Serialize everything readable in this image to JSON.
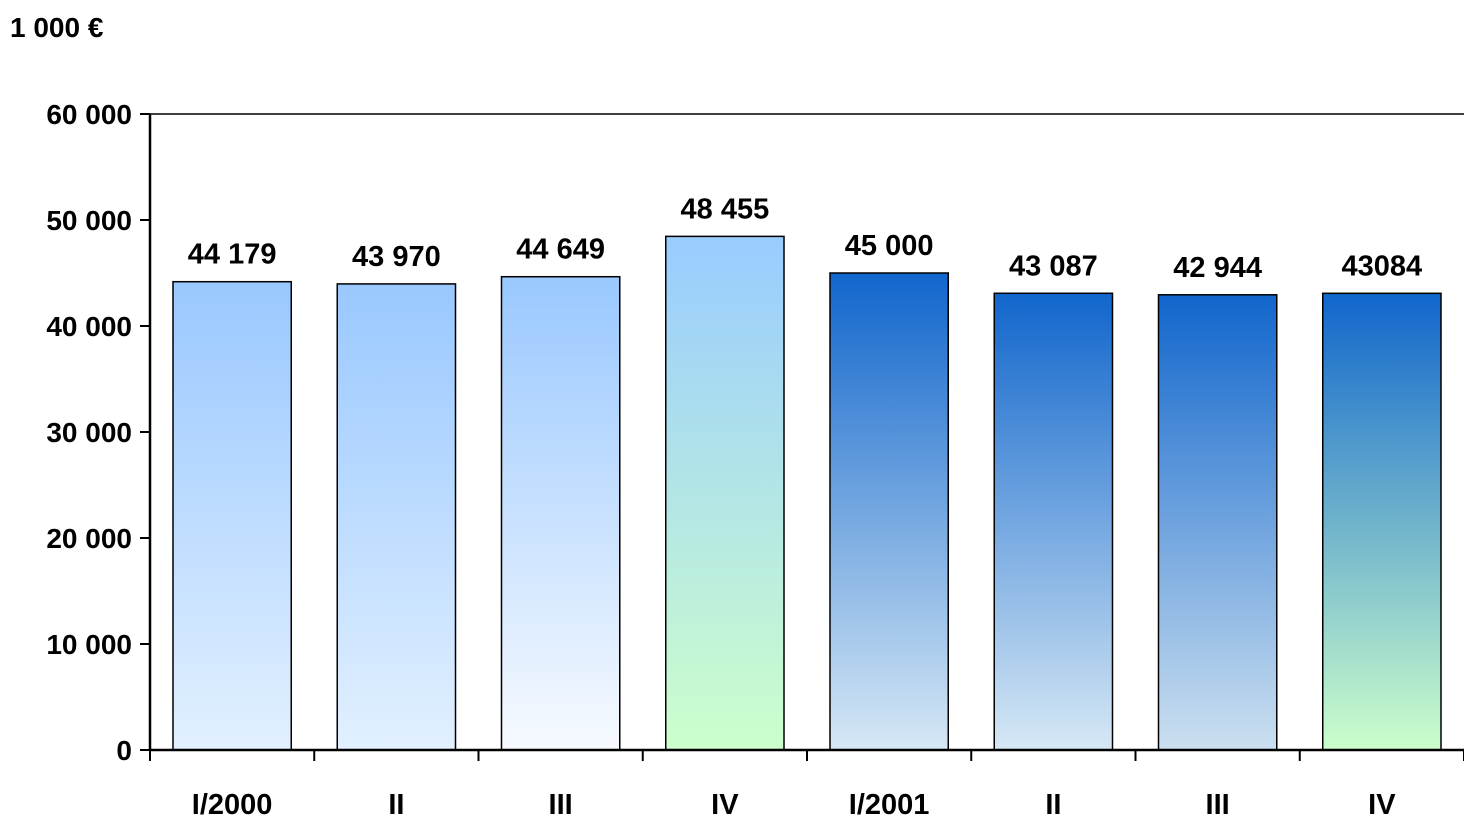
{
  "chart_data": {
    "type": "bar",
    "unit_label": "1 000 €",
    "categories": [
      "I/2000",
      "II",
      "III",
      "IV",
      "I/2001",
      "II",
      "III",
      "IV"
    ],
    "values": [
      44179,
      43970,
      44649,
      48455,
      45000,
      43087,
      42944,
      43084
    ],
    "data_labels": [
      "44 179",
      "43 970",
      "44 649",
      "48 455",
      "45 000",
      "43 087",
      "42 944",
      "43084"
    ],
    "ylim": [
      0,
      60000
    ],
    "yticks": [
      0,
      10000,
      20000,
      30000,
      40000,
      50000,
      60000
    ],
    "ytick_labels": [
      "0",
      "10 000",
      "20 000",
      "30 000",
      "40 000",
      "50 000",
      "60 000"
    ],
    "grid": false,
    "legend": "none",
    "bar_gradients": [
      [
        "#99c8ff",
        "#e2f0ff"
      ],
      [
        "#99c8ff",
        "#e2f0ff"
      ],
      [
        "#99c8ff",
        "#f7faff"
      ],
      [
        "#99ccff",
        "#ccffcc"
      ],
      [
        "#1166cc",
        "#d6e8f5"
      ],
      [
        "#1166cc",
        "#d6e8f5"
      ],
      [
        "#1166cc",
        "#cce0f0"
      ],
      [
        "#1166cc",
        "#ccffcc"
      ]
    ]
  }
}
